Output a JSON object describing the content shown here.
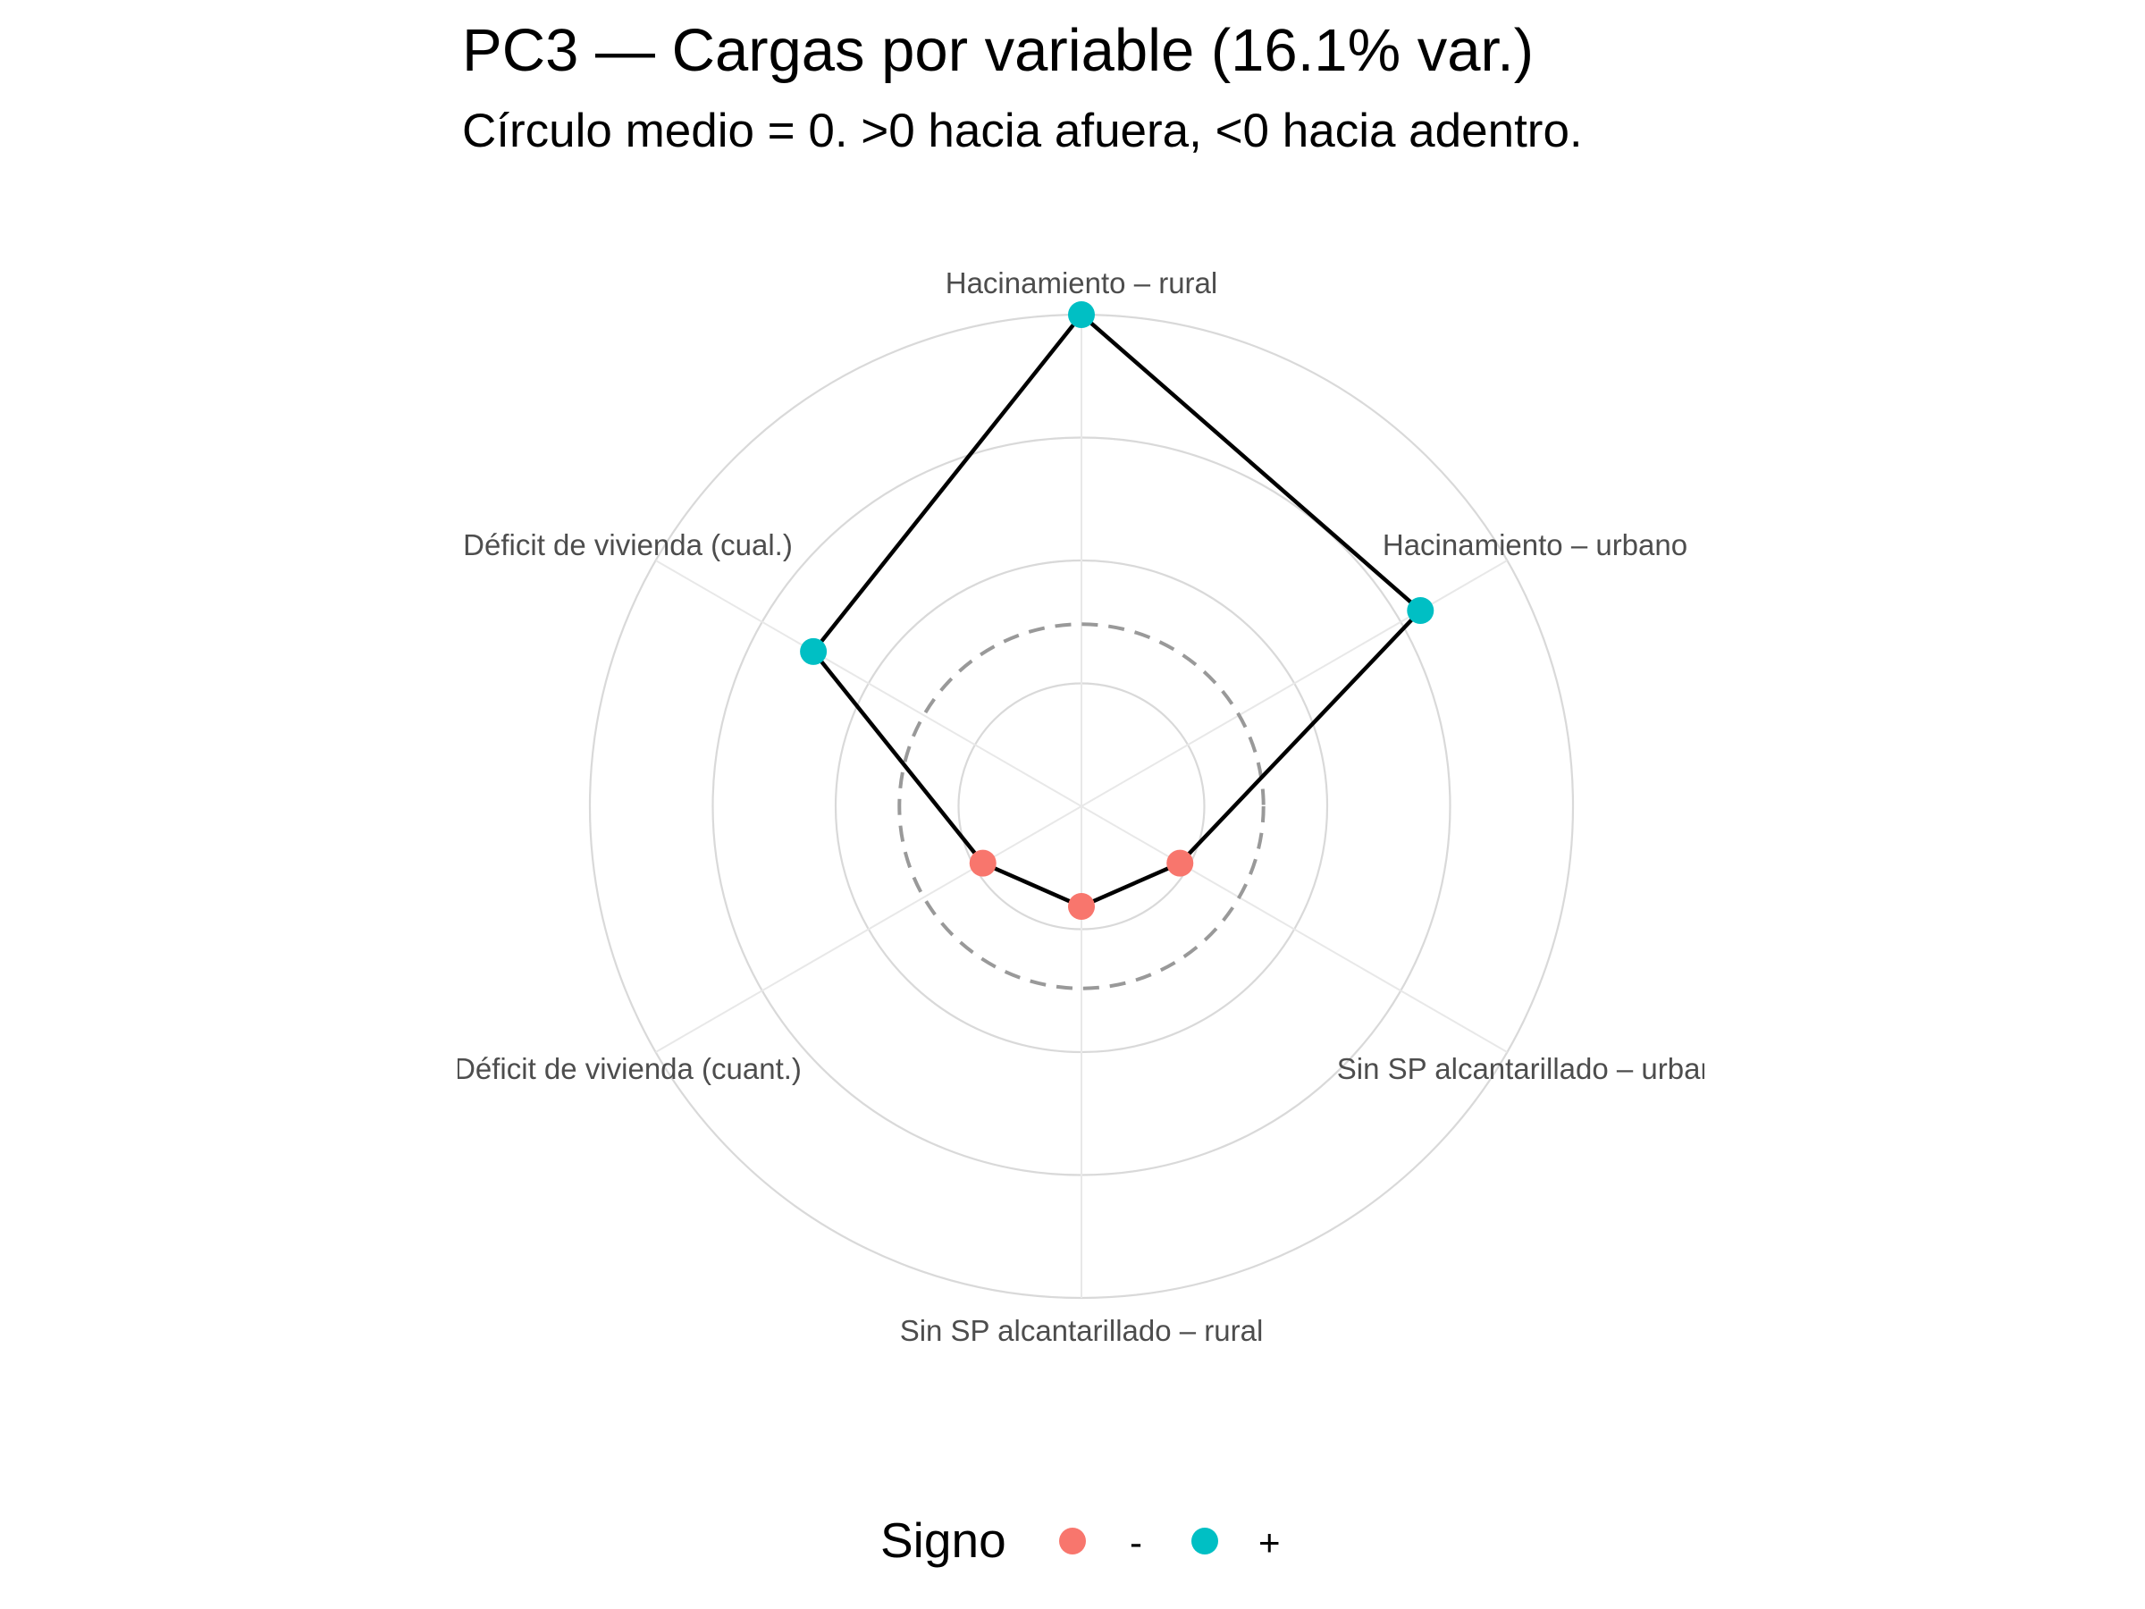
{
  "chart_data": {
    "type": "radar",
    "title": "PC3 — Cargas por variable (16.1% var.)",
    "subtitle": "Círculo medio = 0. >0 hacia afuera, <0 hacia adentro.",
    "categories": [
      "Hacinamiento – rural",
      "Hacinamiento – urbano",
      "Sin SP alcantarillado – urbano",
      "Sin SP alcantarillado – rural",
      "Déficit de vivienda (cuant.)",
      "Déficit de vivienda (cual.)"
    ],
    "series": [
      {
        "values": [
          0.68,
          0.46,
          -0.15,
          -0.18,
          -0.15,
          0.28
        ],
        "signs": [
          "+",
          "+",
          "-",
          "-",
          "-",
          "+"
        ]
      }
    ],
    "rlim": [
      -0.4,
      0.68
    ],
    "zero_ring": 0,
    "grid": true,
    "legend": {
      "title": "Signo",
      "placement": "bottom",
      "entries": [
        {
          "label": "-",
          "color": "#F8766D"
        },
        {
          "label": "+",
          "color": "#00BFC4"
        }
      ]
    },
    "colors": {
      "negative": "#F8766D",
      "positive": "#00BFC4",
      "line": "#000000",
      "grid": "#d9d9d9",
      "zero": "#999999"
    }
  }
}
